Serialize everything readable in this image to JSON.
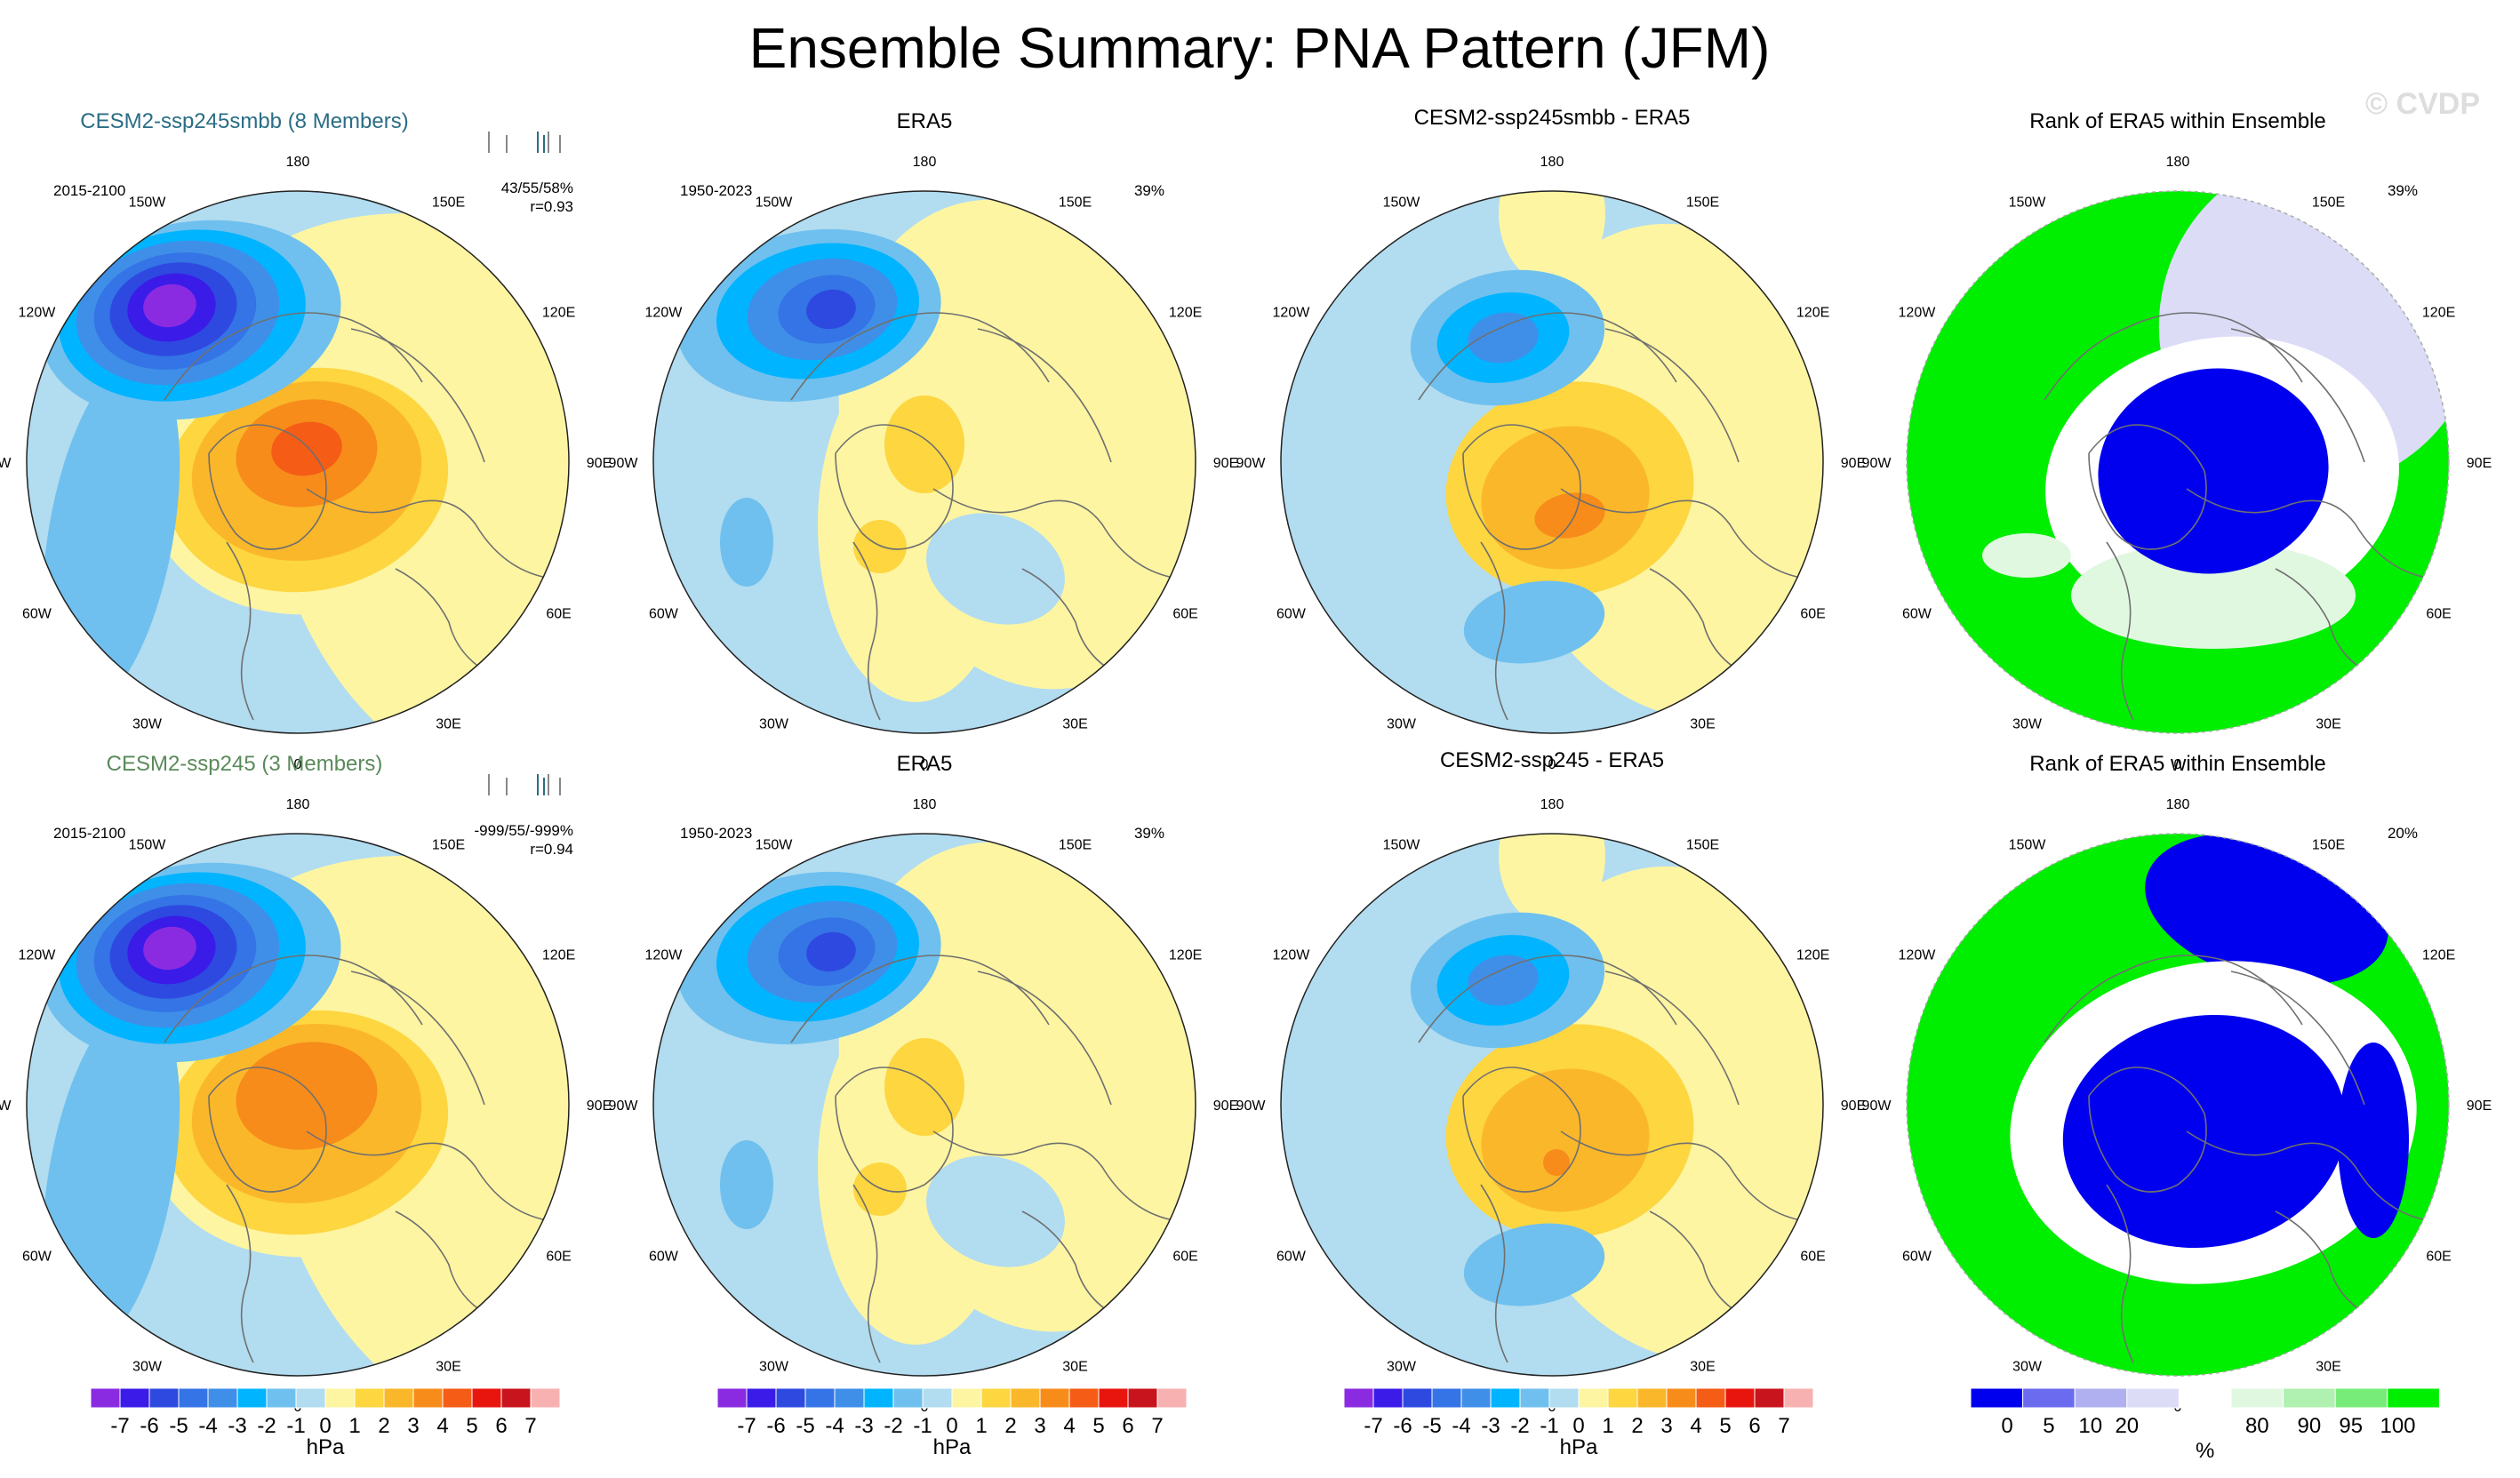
{
  "title": "Ensemble Summary: PNA Pattern (JFM)",
  "watermark": "© CVDP",
  "longitude_labels": [
    "180",
    "150E",
    "120E",
    "90E",
    "60E",
    "30E",
    "0",
    "30W",
    "60W",
    "90W",
    "120W",
    "150W"
  ],
  "colors": {
    "hpa": [
      "#8a2be2",
      "#3a1be8",
      "#2e49e0",
      "#3474e6",
      "#3f8fe8",
      "#00b4ff",
      "#6fc0ee",
      "#b2dcf0",
      "#fdf5a2",
      "#fdd640",
      "#fbb72a",
      "#f78c1a",
      "#f55c16",
      "#e8150e",
      "#c8141c",
      "#f8b1b1"
    ],
    "rank": [
      "#0000ee",
      "#6b6bef",
      "#b0b0f0",
      "#dcdcf7",
      "#ffffff",
      "#e0f8e0",
      "#b0f0b0",
      "#78ec78",
      "#00ee00"
    ],
    "ocean_neutral": "#b2dcf0",
    "land_lines": "#707070"
  },
  "rows": [
    {
      "model_title": "CESM2-ssp245smbb (8 Members)",
      "model_title_color": "#2a6d85",
      "model_years": "2015-2100",
      "stats_line1": "43/55/58%",
      "stats_line2": "r=0.93",
      "obs_title": "ERA5",
      "obs_years": "1950-2023",
      "obs_pct": "39%",
      "diff_title": "CESM2-ssp245smbb - ERA5",
      "rank_title": "Rank of ERA5 within Ensemble",
      "rank_pct": "39%"
    },
    {
      "model_title": "CESM2-ssp245 (3 Members)",
      "model_title_color": "#5a8a5a",
      "model_years": "2015-2100",
      "stats_line1": "-999/55/-999%",
      "stats_line2": "r=0.94",
      "obs_title": "ERA5",
      "obs_years": "1950-2023",
      "obs_pct": "39%",
      "diff_title": "CESM2-ssp245 - ERA5",
      "rank_title": "Rank of ERA5 within Ensemble",
      "rank_pct": "20%"
    }
  ],
  "chart_data": [
    {
      "type": "heatmap",
      "projection": "north-polar-stereographic",
      "panel": "model-mean",
      "units": "hPa",
      "features": {
        "row1": [
          {
            "name": "north-pacific-low",
            "min_hPa": -7
          },
          {
            "name": "canada-high",
            "max_hPa": 3
          },
          {
            "name": "west-us-low",
            "min_hPa": -2
          }
        ],
        "row2": [
          {
            "name": "north-pacific-low",
            "min_hPa": -7
          },
          {
            "name": "canada-high",
            "max_hPa": 3
          },
          {
            "name": "west-us-low",
            "min_hPa": -2
          }
        ]
      }
    },
    {
      "type": "heatmap",
      "projection": "north-polar-stereographic",
      "panel": "observed",
      "units": "hPa",
      "features": {
        "row1": [
          {
            "name": "north-pacific-low",
            "min_hPa": -5
          },
          {
            "name": "canada-high",
            "max_hPa": 1
          }
        ]
      }
    },
    {
      "type": "heatmap",
      "projection": "north-polar-stereographic",
      "panel": "difference",
      "units": "hPa",
      "features": {
        "row1": [
          {
            "name": "north-pacific-low",
            "min_hPa": -3
          },
          {
            "name": "canada-high",
            "max_hPa": 2
          }
        ]
      }
    },
    {
      "type": "heatmap",
      "projection": "north-polar-stereographic",
      "panel": "rank",
      "units": "%",
      "regions": {
        "row1": [
          "0-5 over pole/Asia",
          "95-100 over Atlantic/Pacific"
        ],
        "row2": [
          "0-5 over pole/Asia",
          "95-100 over Atlantic/Pacific"
        ]
      }
    }
  ],
  "colorbars": {
    "hpa": {
      "labels": [
        "-7",
        "-6",
        "-5",
        "-4",
        "-3",
        "-2",
        "-1",
        "0",
        "1",
        "2",
        "3",
        "4",
        "5",
        "6",
        "7"
      ],
      "unit": "hPa"
    },
    "rank": {
      "labels": [
        "0",
        "5",
        "10",
        "20",
        "80",
        "90",
        "95",
        "100"
      ],
      "unit": "%"
    }
  }
}
